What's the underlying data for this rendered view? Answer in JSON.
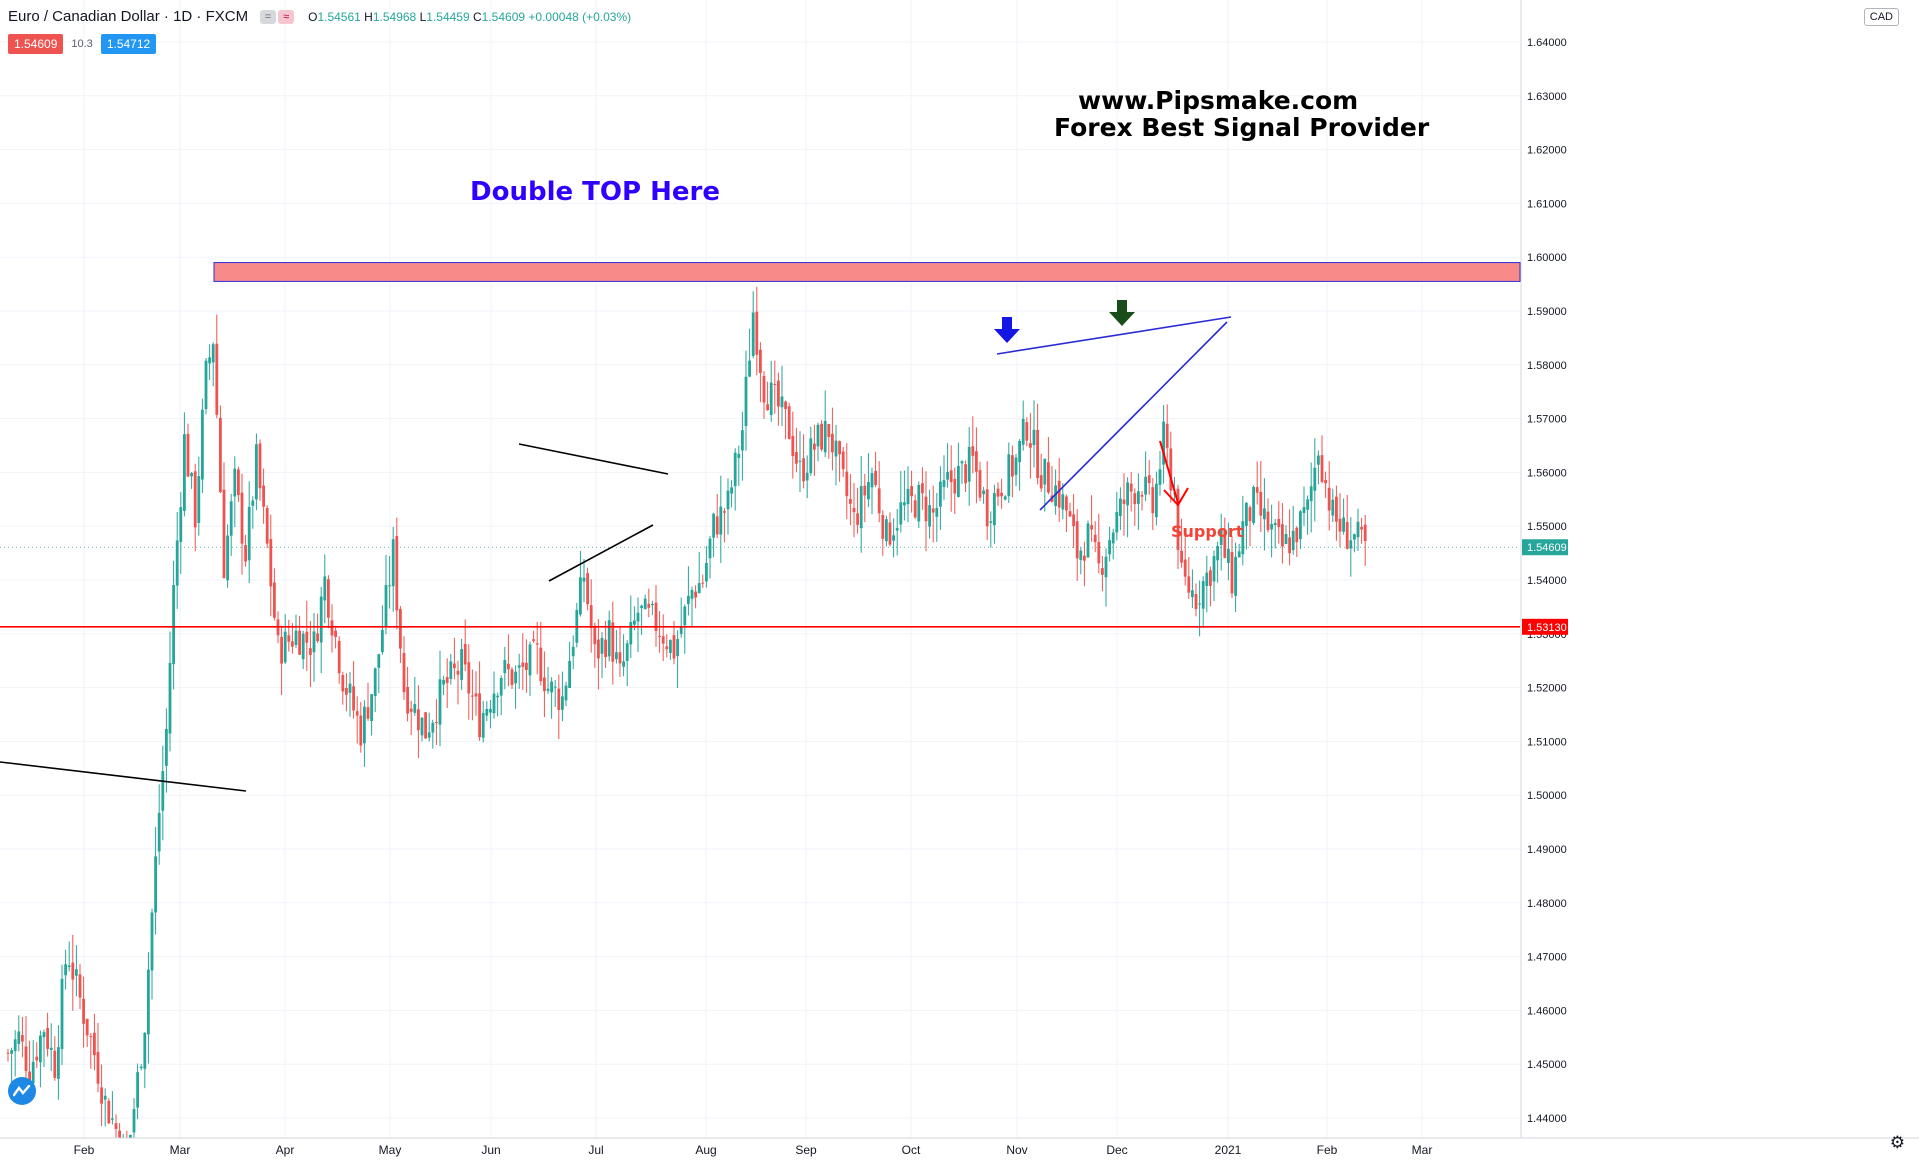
{
  "header": {
    "symbol": "Euro / Canadian Dollar · 1D · FXCM",
    "toggle_a": "=",
    "toggle_b": "≈",
    "o_label": "O",
    "o_value": "1.54561",
    "h_label": "H",
    "h_value": "1.54968",
    "l_label": "L",
    "l_value": "1.54459",
    "c_label": "C",
    "c_value": "1.54609",
    "change": "+0.00048 (+0.03%)"
  },
  "trade": {
    "sell_price": "1.54609",
    "spread": "10.3",
    "buy_price": "1.54712"
  },
  "currency_button": "CAD",
  "colors": {
    "up": "#26a69a",
    "down": "#ef5350",
    "resistance_fill": "#f88a8a",
    "resistance_border": "#2b2bd6",
    "support": "#ff0000",
    "annotation_blue": "#2f00ff",
    "trend_blue": "#2b2bd6",
    "arrow_green": "#1b4d1b",
    "support_text": "#f44336"
  },
  "icons": {
    "logo": "tradingview-logo-icon",
    "settings": "gear-icon"
  },
  "chart_data": {
    "type": "candlestick",
    "title": "Euro / Canadian Dollar · 1D · FXCM",
    "ylim": [
      1.435,
      1.645
    ],
    "y_ticks": [
      1.44,
      1.45,
      1.46,
      1.47,
      1.48,
      1.49,
      1.5,
      1.51,
      1.52,
      1.53,
      1.54,
      1.55,
      1.56,
      1.57,
      1.58,
      1.59,
      1.6,
      1.61,
      1.62,
      1.63,
      1.64
    ],
    "x_ticks": [
      "Feb",
      "Mar",
      "Apr",
      "May",
      "Jun",
      "Jul",
      "Aug",
      "Sep",
      "Oct",
      "Nov",
      "Dec",
      "2021",
      "Feb",
      "Mar"
    ],
    "current_price": 1.54609,
    "support_price": 1.5313,
    "resistance_zone": [
      1.5955,
      1.599
    ],
    "price_series": [
      [
        0,
        1.452
      ],
      [
        3,
        1.455
      ],
      [
        6,
        1.449
      ],
      [
        10,
        1.457
      ],
      [
        13,
        1.45
      ],
      [
        16,
        1.469
      ],
      [
        17,
        1.47
      ],
      [
        20,
        1.462
      ],
      [
        24,
        1.452
      ],
      [
        27,
        1.443
      ],
      [
        30,
        1.438
      ],
      [
        33,
        1.432
      ],
      [
        36,
        1.447
      ],
      [
        38,
        1.458
      ],
      [
        40,
        1.478
      ],
      [
        42,
        1.497
      ],
      [
        44,
        1.512
      ],
      [
        46,
        1.538
      ],
      [
        49,
        1.566
      ],
      [
        52,
        1.552
      ],
      [
        55,
        1.578
      ],
      [
        57,
        1.585
      ],
      [
        60,
        1.543
      ],
      [
        63,
        1.558
      ],
      [
        66,
        1.545
      ],
      [
        69,
        1.562
      ],
      [
        72,
        1.546
      ],
      [
        75,
        1.527
      ],
      [
        80,
        1.53
      ],
      [
        85,
        1.528
      ],
      [
        88,
        1.54
      ],
      [
        93,
        1.522
      ],
      [
        98,
        1.512
      ],
      [
        102,
        1.522
      ],
      [
        107,
        1.545
      ],
      [
        110,
        1.52
      ],
      [
        116,
        1.512
      ],
      [
        121,
        1.52
      ],
      [
        126,
        1.524
      ],
      [
        131,
        1.514
      ],
      [
        137,
        1.523
      ],
      [
        141,
        1.522
      ],
      [
        147,
        1.526
      ],
      [
        150,
        1.52
      ],
      [
        154,
        1.518
      ],
      [
        160,
        1.541
      ],
      [
        163,
        1.526
      ],
      [
        167,
        1.53
      ],
      [
        170,
        1.522
      ],
      [
        175,
        1.534
      ],
      [
        180,
        1.532
      ],
      [
        185,
        1.527
      ],
      [
        190,
        1.538
      ],
      [
        193,
        1.54
      ],
      [
        196,
        1.55
      ],
      [
        200,
        1.554
      ],
      [
        204,
        1.568
      ],
      [
        207,
        1.59
      ],
      [
        210,
        1.576
      ],
      [
        214,
        1.572
      ],
      [
        217,
        1.568
      ],
      [
        220,
        1.56
      ],
      [
        225,
        1.566
      ],
      [
        228,
        1.568
      ],
      [
        231,
        1.56
      ],
      [
        235,
        1.551
      ],
      [
        240,
        1.56
      ],
      [
        244,
        1.548
      ],
      [
        248,
        1.553
      ],
      [
        253,
        1.555
      ],
      [
        257,
        1.552
      ],
      [
        261,
        1.558
      ],
      [
        265,
        1.56
      ],
      [
        268,
        1.562
      ],
      [
        272,
        1.553
      ],
      [
        276,
        1.558
      ],
      [
        280,
        1.562
      ],
      [
        283,
        1.569
      ],
      [
        287,
        1.56
      ],
      [
        291,
        1.557
      ],
      [
        294,
        1.553
      ],
      [
        297,
        1.545
      ],
      [
        300,
        1.548
      ],
      [
        303,
        1.542
      ],
      [
        307,
        1.55
      ],
      [
        311,
        1.556
      ],
      [
        315,
        1.558
      ],
      [
        318,
        1.553
      ],
      [
        321,
        1.566
      ],
      [
        324,
        1.556
      ],
      [
        326,
        1.54
      ],
      [
        330,
        1.537
      ],
      [
        334,
        1.542
      ],
      [
        337,
        1.547
      ],
      [
        340,
        1.54
      ],
      [
        343,
        1.55
      ],
      [
        346,
        1.554
      ],
      [
        350,
        1.55
      ],
      [
        354,
        1.546
      ],
      [
        357,
        1.548
      ],
      [
        361,
        1.553
      ],
      [
        364,
        1.565
      ],
      [
        366,
        1.558
      ],
      [
        368,
        1.552
      ],
      [
        371,
        1.549
      ],
      [
        374,
        1.548
      ],
      [
        377,
        1.546
      ]
    ]
  },
  "annotations": {
    "double_top": "Double TOP Here",
    "support": "Support",
    "site_line1": "www.Pipsmake.com",
    "site_line2": "Forex Best Signal Provider"
  }
}
